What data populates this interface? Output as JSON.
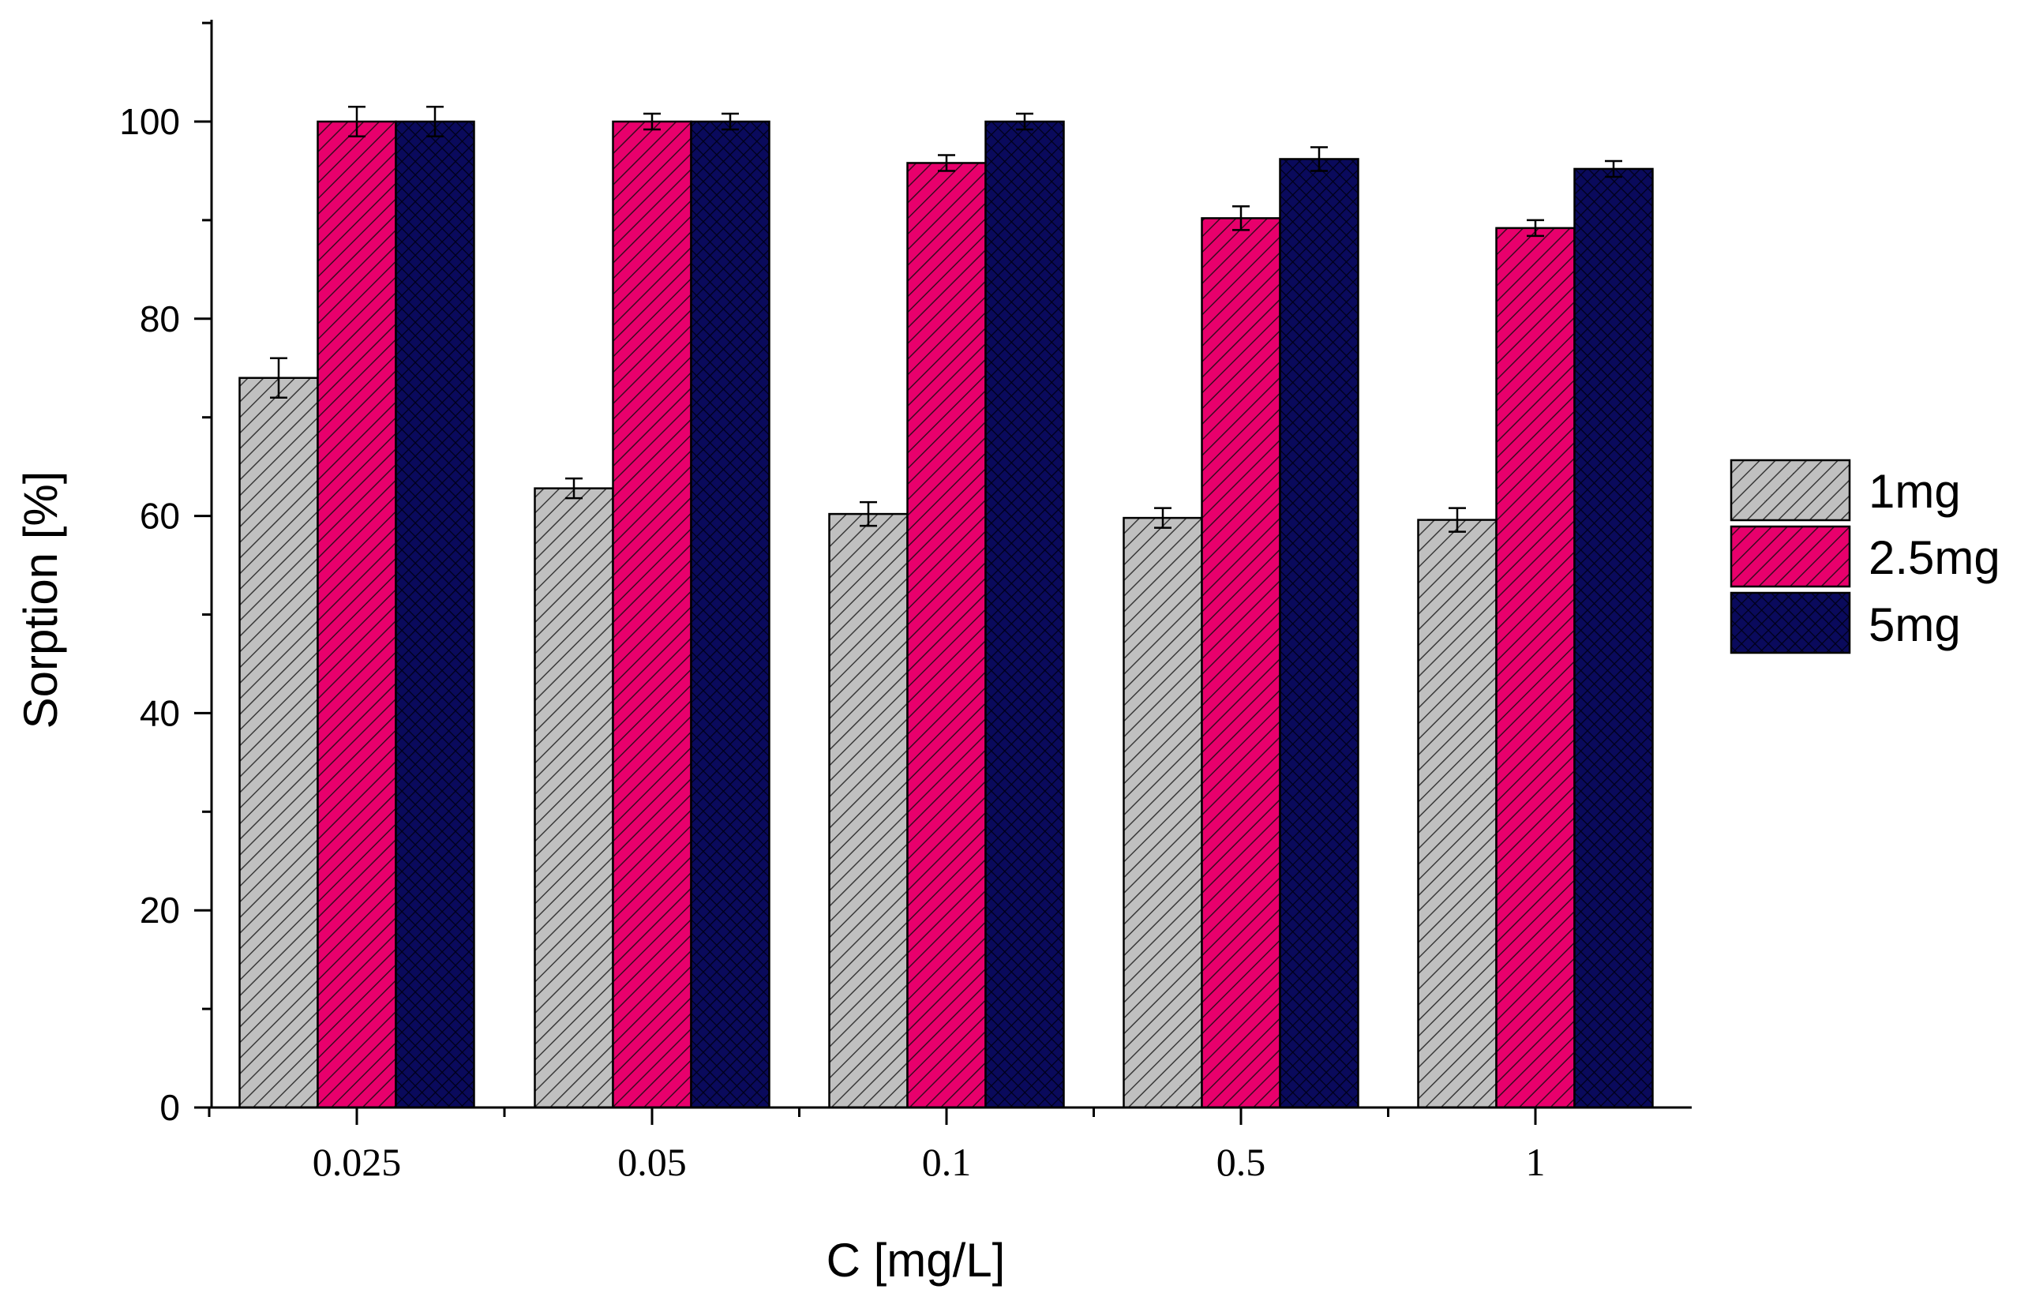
{
  "chart_data": {
    "type": "bar",
    "title": "",
    "xlabel": "C [mg/L]",
    "ylabel": "Sorption [%]",
    "categories": [
      "0.025",
      "0.05",
      "0.1",
      "0.5",
      "1"
    ],
    "ylim": [
      0,
      110
    ],
    "yticks": [
      0,
      20,
      40,
      60,
      80,
      100
    ],
    "yticks_labels": [
      "0",
      "20",
      "40",
      "60",
      "80",
      "100"
    ],
    "grid": false,
    "legend_position": "right",
    "series": [
      {
        "name": "1mg",
        "values": [
          74,
          62.8,
          60.2,
          59.8,
          59.6
        ],
        "errors": [
          2.0,
          1.0,
          1.2,
          1.0,
          1.2
        ],
        "color": "#c0c0c0",
        "hatch": "diagonal"
      },
      {
        "name": "2.5mg",
        "values": [
          100,
          100,
          95.8,
          90.2,
          89.2
        ],
        "errors": [
          1.5,
          0.8,
          0.8,
          1.2,
          0.8
        ],
        "color": "#e8006c",
        "hatch": "diagonal"
      },
      {
        "name": "5mg",
        "values": [
          100,
          100,
          100,
          96.2,
          95.2
        ],
        "errors": [
          1.5,
          0.8,
          0.8,
          1.2,
          0.8
        ],
        "color": "#0a0a5c",
        "hatch": "crosshatch"
      }
    ]
  }
}
